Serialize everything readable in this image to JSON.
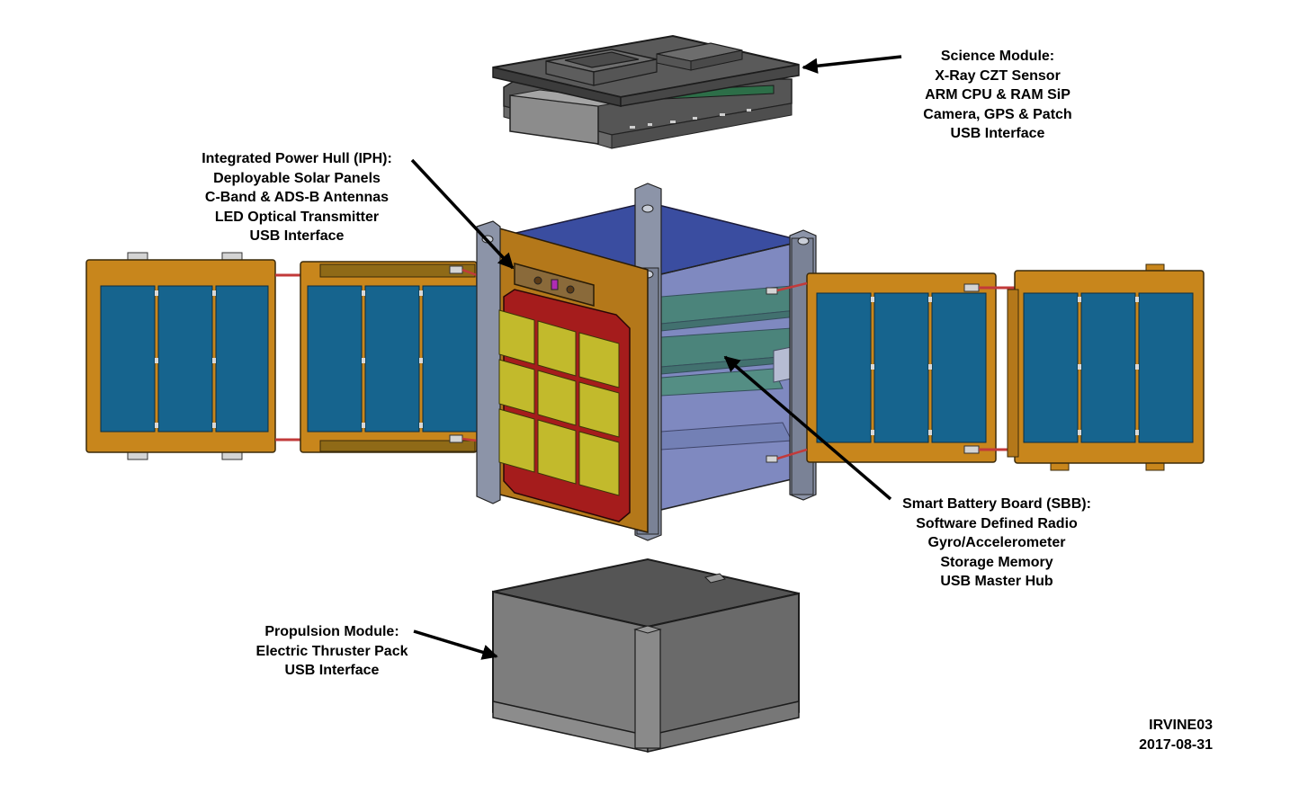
{
  "science_module": {
    "title": "Science Module:",
    "lines": [
      "X-Ray CZT Sensor",
      "ARM CPU & RAM SiP",
      "Camera, GPS & Patch",
      "USB Interface"
    ]
  },
  "power_hull": {
    "title": "Integrated Power Hull (IPH):",
    "lines": [
      "Deployable Solar Panels",
      "C-Band & ADS-B Antennas",
      "LED Optical Transmitter",
      "USB Interface"
    ]
  },
  "battery_board": {
    "title": "Smart Battery Board (SBB):",
    "lines": [
      "Software Defined Radio",
      "Gyro/Accelerometer",
      "Storage Memory",
      "USB Master Hub"
    ]
  },
  "propulsion_module": {
    "title": "Propulsion Module:",
    "lines": [
      "Electric Thruster Pack",
      "USB Interface"
    ]
  },
  "drawing_id": {
    "name": "IRVINE03",
    "date": "2017-08-31"
  },
  "colors": {
    "panel_frame": "#c8861c",
    "solar_cell": "#16648e",
    "hull_red": "#a51c1c",
    "antenna_tile": "#c2ba2c",
    "module_gray": "#7a7a7a",
    "board_green": "#3d8b5a",
    "cube_glass": "#6677bb"
  }
}
